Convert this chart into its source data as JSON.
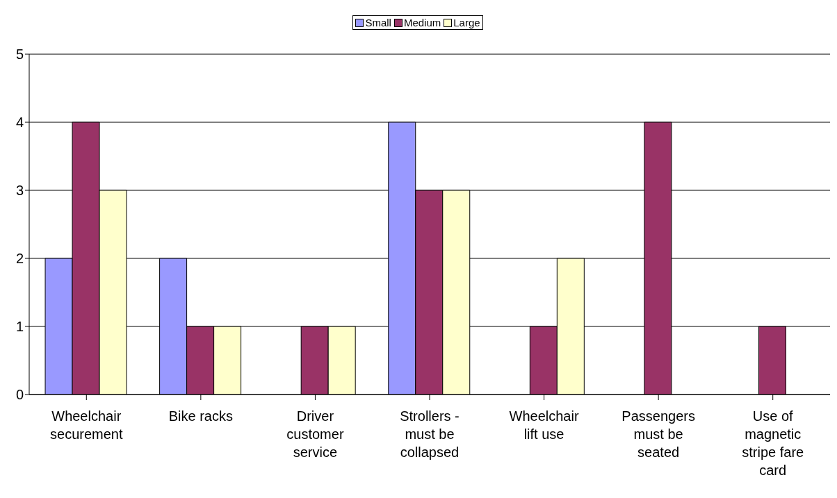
{
  "chart_data": {
    "type": "bar",
    "categories": [
      "Wheelchair securement",
      "Bike racks",
      "Driver customer service",
      "Strollers - must be collapsed",
      "Wheelchair lift use",
      "Passengers must be seated",
      "Use of magnetic stripe fare card"
    ],
    "series": [
      {
        "name": "Small",
        "color": "#9999ff",
        "values": [
          2,
          2,
          0,
          4,
          0,
          0,
          0
        ]
      },
      {
        "name": "Medium",
        "color": "#993366",
        "values": [
          4,
          1,
          1,
          3,
          1,
          4,
          1
        ]
      },
      {
        "name": "Large",
        "color": "#ffffcc",
        "values": [
          3,
          1,
          1,
          3,
          2,
          0,
          0
        ]
      }
    ],
    "ylim": [
      0,
      5
    ],
    "yticks": [
      0,
      1,
      2,
      3,
      4,
      5
    ],
    "grid": "y",
    "legend": "top"
  }
}
